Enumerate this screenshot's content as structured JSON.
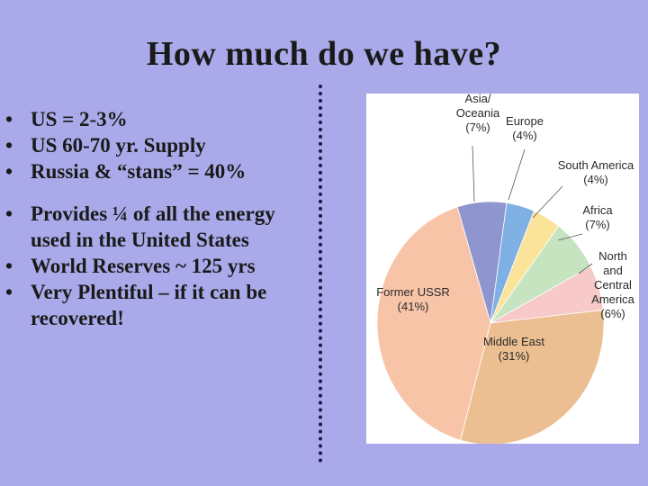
{
  "slide": {
    "title": "How much do we have?"
  },
  "bullets": [
    {
      "text": "US = 2-3%"
    },
    {
      "text": "US 60-70 yr. Supply"
    },
    {
      "text": "Russia & “stans” = 40%"
    },
    {
      "text": "Provides ¼ of all the energy used in the United States"
    },
    {
      "text": "World Reserves ~ 125 yrs"
    },
    {
      "text": "Very Plentiful – if it can be recovered!"
    }
  ],
  "chart_data": {
    "type": "pie",
    "slices": [
      {
        "label_lines": [
          "Asia/",
          "Oceania",
          "(7%)"
        ],
        "value": 7,
        "color": "#8f95cf"
      },
      {
        "label_lines": [
          "Europe",
          "(4%)"
        ],
        "value": 4,
        "color": "#7fb0e3"
      },
      {
        "label_lines": [
          "South America",
          "(4%)"
        ],
        "value": 4,
        "color": "#fbe39a"
      },
      {
        "label_lines": [
          "Africa",
          "(7%)"
        ],
        "value": 7,
        "color": "#c6e4c0"
      },
      {
        "label_lines": [
          "North",
          "and",
          "Central",
          "America",
          "(6%)"
        ],
        "value": 6,
        "color": "#f7c9c9"
      },
      {
        "label_lines": [
          "Middle East",
          "(31%)"
        ],
        "value": 31,
        "color": "#ecbf92"
      },
      {
        "label_lines": [
          "Former USSR",
          "(41%)"
        ],
        "value": 41,
        "color": "#f8c4a8"
      }
    ]
  }
}
